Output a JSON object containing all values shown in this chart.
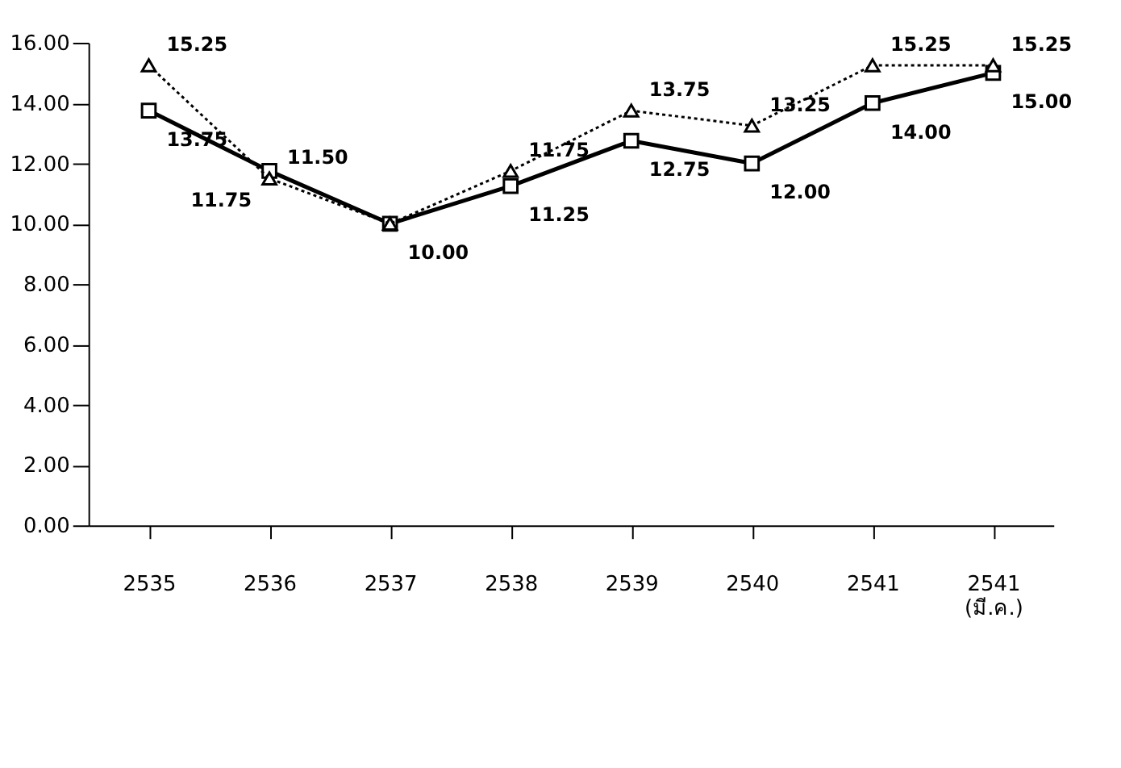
{
  "chart_data": {
    "type": "line",
    "categories": [
      "2535",
      "2536",
      "2537",
      "2538",
      "2539",
      "2540",
      "2541",
      "2541\n(มี.ค.)"
    ],
    "series": [
      {
        "color": "#000000",
        "marker": "square",
        "line_style": "solid",
        "values": [
          13.75,
          11.75,
          10.0,
          11.25,
          12.75,
          12.0,
          14.0,
          15.0
        ],
        "value_labels": [
          "13.75",
          "11.75",
          null,
          "11.25",
          "12.75",
          "12.00",
          "14.00",
          "15.00"
        ]
      },
      {
        "color": "#000000",
        "marker": "triangle",
        "line_style": "dotted",
        "values": [
          15.25,
          11.5,
          10.0,
          11.75,
          13.75,
          13.25,
          15.25,
          15.25
        ],
        "value_labels": [
          "15.25",
          "11.50",
          "10.00",
          "11.75",
          "13.75",
          "13.25",
          "15.25",
          "15.25"
        ]
      }
    ],
    "ylim": [
      0,
      16
    ],
    "yticks": [
      {
        "value": 0,
        "label": "0.00"
      },
      {
        "value": 2,
        "label": "2.00"
      },
      {
        "value": 4,
        "label": "4.00"
      },
      {
        "value": 6,
        "label": "6.00"
      },
      {
        "value": 8,
        "label": "8.00"
      },
      {
        "value": 10,
        "label": "10.00"
      },
      {
        "value": 12,
        "label": "12.00"
      },
      {
        "value": 14,
        "label": "14.00"
      },
      {
        "value": 16,
        "label": "16.00"
      }
    ],
    "grid": false,
    "legend": false
  }
}
